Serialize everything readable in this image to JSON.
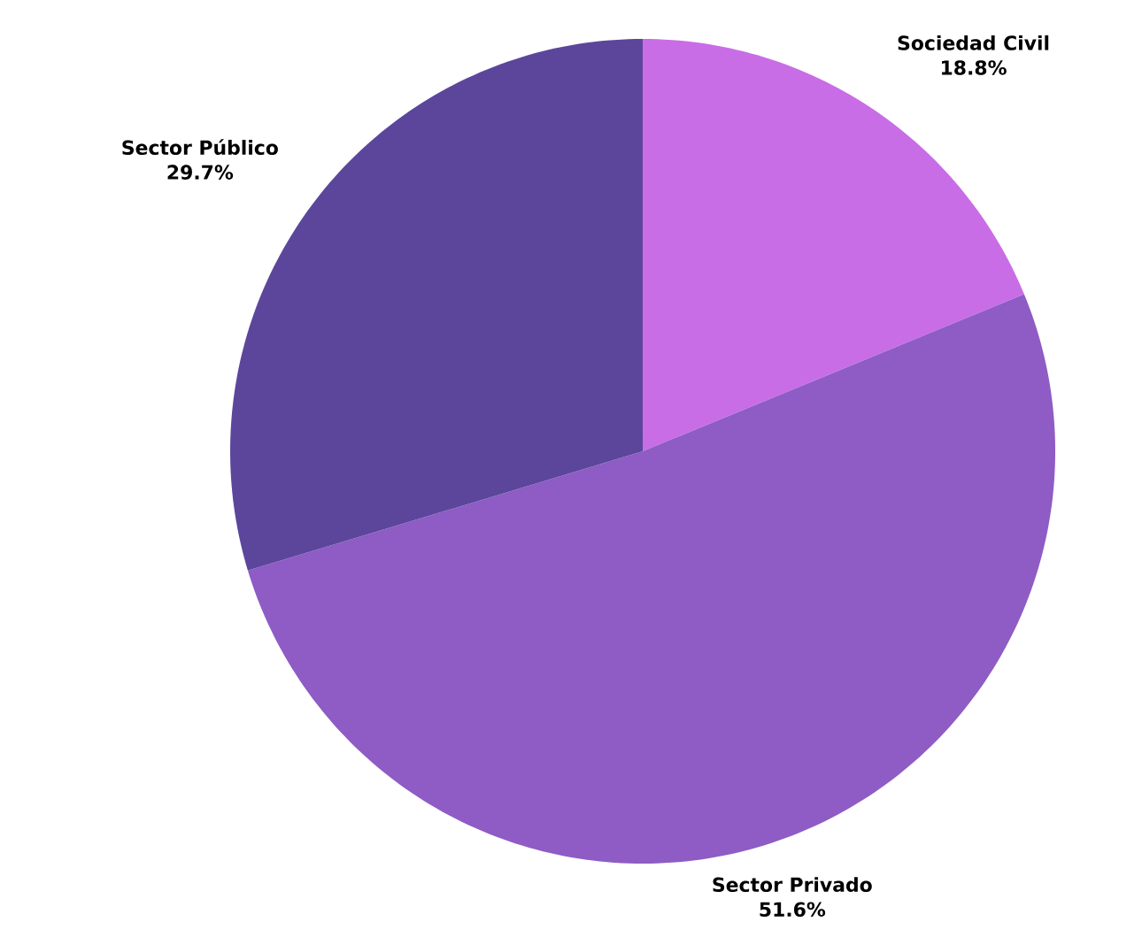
{
  "chart_data": {
    "type": "pie",
    "categories": [
      "Sociedad Civil",
      "Sector Privado",
      "Sector Público"
    ],
    "values": [
      18.8,
      51.6,
      29.7
    ],
    "value_labels": [
      "18.8%",
      "51.6%",
      "29.7%"
    ],
    "colors": [
      "#c86de6",
      "#8e5cc4",
      "#5c469c"
    ]
  }
}
